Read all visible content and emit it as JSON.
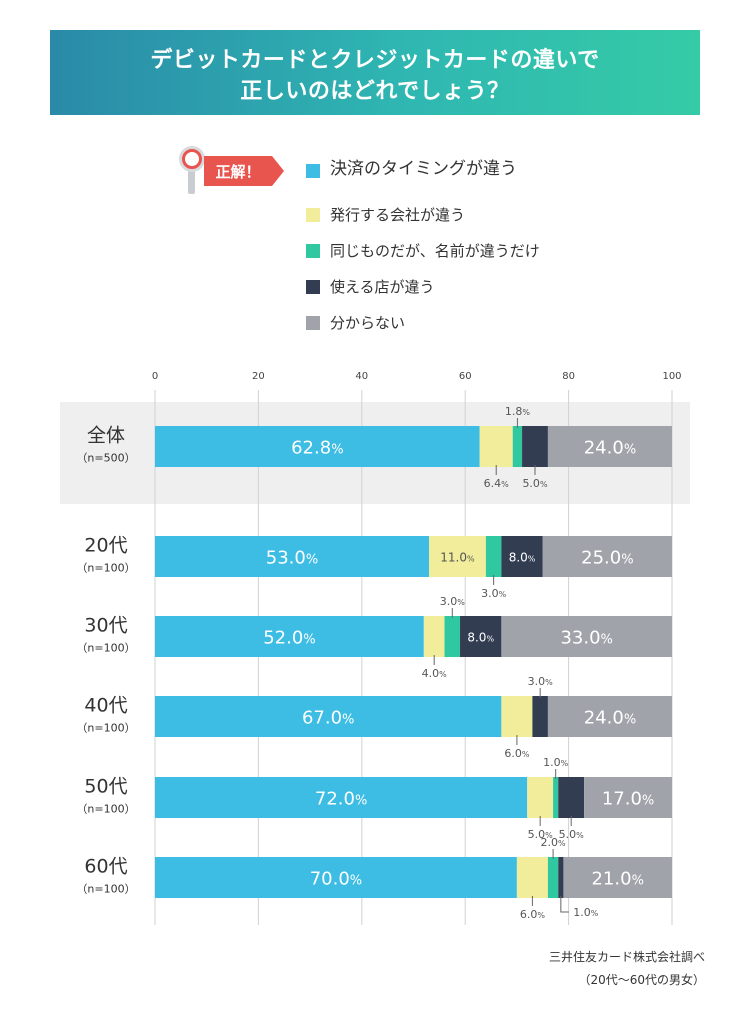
{
  "title": {
    "line1": "デビットカードとクレジットカードの違いで",
    "line2": "正しいのはどれでしょう？"
  },
  "badge": {
    "text": "正解！",
    "icon": "magnifier-icon",
    "color": "#e8544e"
  },
  "legend": [
    {
      "label": "決済のタイミングが違う",
      "color": "#3dbde4",
      "correct": true
    },
    {
      "label": "発行する会社が違う",
      "color": "#f1ed9b"
    },
    {
      "label": "同じものだが、名前が違うだけ",
      "color": "#2fc8a0"
    },
    {
      "label": "使える店が違う",
      "color": "#323d52"
    },
    {
      "label": "分からない",
      "color": "#a0a3a9"
    }
  ],
  "source": {
    "line1": "三井住友カード株式会社調べ",
    "line2": "（20代〜60代の男女）"
  },
  "chart_data": {
    "type": "bar",
    "orientation": "horizontal",
    "stacked": true,
    "unit": "%",
    "xlim": [
      0,
      100
    ],
    "ticks": [
      "0",
      "20",
      "40",
      "60",
      "80",
      "100"
    ],
    "grid": true,
    "legend_position": "top",
    "categories": [
      {
        "label": "全体",
        "n": "（n=500）"
      },
      {
        "label": "20代",
        "n": "（n=100）"
      },
      {
        "label": "30代",
        "n": "（n=100）"
      },
      {
        "label": "40代",
        "n": "（n=100）"
      },
      {
        "label": "50代",
        "n": "（n=100）"
      },
      {
        "label": "60代",
        "n": "（n=100）"
      }
    ],
    "series": [
      {
        "name": "決済のタイミングが違う",
        "values": [
          62.8,
          53.0,
          52.0,
          67.0,
          72.0,
          70.0
        ]
      },
      {
        "name": "発行する会社が違う",
        "values": [
          6.4,
          11.0,
          4.0,
          6.0,
          5.0,
          6.0
        ]
      },
      {
        "name": "同じものだが、名前が違うだけ",
        "values": [
          1.8,
          3.0,
          3.0,
          0,
          1.0,
          2.0
        ]
      },
      {
        "name": "使える店が違う",
        "values": [
          5.0,
          8.0,
          8.0,
          3.0,
          5.0,
          1.0
        ]
      },
      {
        "name": "分からない",
        "values": [
          24.0,
          25.0,
          33.0,
          24.0,
          17.0,
          21.0
        ]
      }
    ],
    "labels": [
      [
        "62.8",
        "6.4",
        "1.8",
        "5.0",
        "24.0"
      ],
      [
        "53.0",
        "11.0",
        "3.0",
        "8.0",
        "25.0"
      ],
      [
        "52.0",
        "4.0",
        "3.0",
        "8.0",
        "33.0"
      ],
      [
        "67.0",
        "6.0",
        "",
        "3.0",
        "24.0"
      ],
      [
        "72.0",
        "5.0",
        "1.0",
        "5.0",
        "17.0"
      ],
      [
        "70.0",
        "6.0",
        "2.0",
        "1.0",
        "21.0"
      ]
    ]
  }
}
